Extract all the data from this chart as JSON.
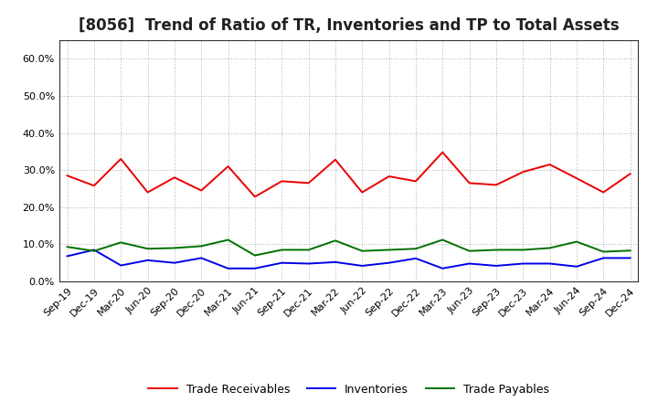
{
  "title": "[8056]  Trend of Ratio of TR, Inventories and TP to Total Assets",
  "labels": [
    "Sep-19",
    "Dec-19",
    "Mar-20",
    "Jun-20",
    "Sep-20",
    "Dec-20",
    "Mar-21",
    "Jun-21",
    "Sep-21",
    "Dec-21",
    "Mar-22",
    "Jun-22",
    "Sep-22",
    "Dec-22",
    "Mar-23",
    "Jun-23",
    "Sep-23",
    "Dec-23",
    "Mar-24",
    "Jun-24",
    "Sep-24",
    "Dec-24"
  ],
  "trade_receivables": [
    0.285,
    0.258,
    0.33,
    0.24,
    0.28,
    0.245,
    0.31,
    0.228,
    0.27,
    0.265,
    0.328,
    0.24,
    0.283,
    0.27,
    0.348,
    0.265,
    0.26,
    0.295,
    0.315,
    0.278,
    0.24,
    0.29
  ],
  "inventories": [
    0.068,
    0.085,
    0.043,
    0.057,
    0.05,
    0.063,
    0.035,
    0.035,
    0.05,
    0.048,
    0.052,
    0.042,
    0.05,
    0.062,
    0.035,
    0.048,
    0.042,
    0.048,
    0.048,
    0.04,
    0.063,
    0.063
  ],
  "trade_payables": [
    0.093,
    0.082,
    0.105,
    0.088,
    0.09,
    0.095,
    0.112,
    0.07,
    0.085,
    0.085,
    0.11,
    0.082,
    0.085,
    0.088,
    0.112,
    0.082,
    0.085,
    0.085,
    0.09,
    0.107,
    0.08,
    0.083
  ],
  "tr_color": "#e80000",
  "inv_color": "#0000e8",
  "tp_color": "#007000",
  "background_color": "#ffffff",
  "grid_color": "#999999",
  "ylim": [
    0.0,
    0.65
  ],
  "yticks": [
    0.0,
    0.1,
    0.2,
    0.3,
    0.4,
    0.5,
    0.6
  ],
  "title_fontsize": 12,
  "tick_fontsize": 8,
  "legend_fontsize": 9
}
